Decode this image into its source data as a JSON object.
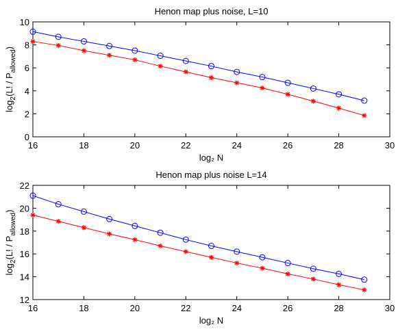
{
  "chart_data": [
    {
      "type": "line",
      "title": "Henon map plus noise, L=10",
      "xlabel": "log₂ N",
      "ylabel": "log₂(L! / P_allowed)",
      "xlim": [
        16,
        30
      ],
      "ylim": [
        0,
        10
      ],
      "xticks": [
        16,
        18,
        20,
        22,
        24,
        26,
        28,
        30
      ],
      "yticks": [
        0,
        2,
        4,
        6,
        8,
        10
      ],
      "grid": false,
      "x": [
        16,
        17,
        18,
        19,
        20,
        21,
        22,
        23,
        24,
        25,
        26,
        27,
        28,
        29
      ],
      "series": [
        {
          "marker": "circle",
          "color": "#0000ff",
          "values": [
            9.15,
            8.7,
            8.3,
            7.9,
            7.5,
            7.05,
            6.6,
            6.15,
            5.65,
            5.2,
            4.7,
            4.2,
            3.7,
            3.15
          ]
        },
        {
          "marker": "star",
          "color": "#ff0000",
          "values": [
            8.3,
            7.95,
            7.5,
            7.1,
            6.7,
            6.15,
            5.65,
            5.15,
            4.7,
            4.25,
            3.7,
            3.1,
            2.5,
            1.85
          ]
        }
      ]
    },
    {
      "type": "line",
      "title": "Henon map plus noise L=14",
      "xlabel": "log₂ N",
      "ylabel": "log₂(L! / P_allowed)",
      "xlim": [
        16,
        30
      ],
      "ylim": [
        12,
        22
      ],
      "xticks": [
        16,
        18,
        20,
        22,
        24,
        26,
        28,
        30
      ],
      "yticks": [
        12,
        14,
        16,
        18,
        20,
        22
      ],
      "grid": false,
      "x": [
        16,
        17,
        18,
        19,
        20,
        21,
        22,
        23,
        24,
        25,
        26,
        27,
        28,
        29
      ],
      "series": [
        {
          "marker": "circle",
          "color": "#0000ff",
          "values": [
            21.1,
            20.35,
            19.7,
            19.05,
            18.45,
            17.85,
            17.25,
            16.7,
            16.2,
            15.7,
            15.2,
            14.7,
            14.25,
            13.75
          ]
        },
        {
          "marker": "star",
          "color": "#ff0000",
          "values": [
            19.4,
            18.85,
            18.3,
            17.75,
            17.25,
            16.7,
            16.2,
            15.7,
            15.2,
            14.75,
            14.25,
            13.8,
            13.3,
            12.85
          ]
        }
      ]
    }
  ]
}
